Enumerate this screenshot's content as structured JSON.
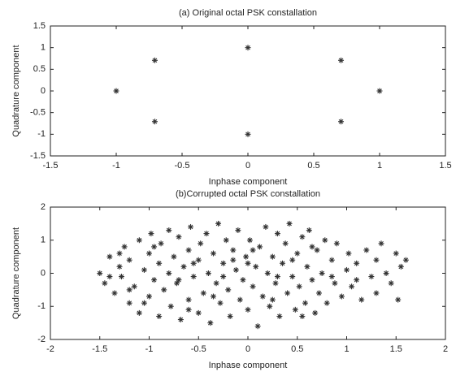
{
  "chart_data": [
    {
      "type": "scatter",
      "title": "(a) Original octal PSK constallation",
      "xlabel": "Inphase component",
      "ylabel": "Quadrature component",
      "x": [
        1,
        0.707,
        0,
        -0.707,
        -1,
        -0.707,
        0,
        0.707
      ],
      "y": [
        0,
        0.707,
        1,
        0.707,
        0,
        -0.707,
        -1,
        -0.707
      ],
      "xlim": [
        -1.5,
        1.5
      ],
      "ylim": [
        -1.5,
        1.5
      ],
      "xticks": [
        -1.5,
        -1,
        -0.5,
        0,
        0.5,
        1,
        1.5
      ],
      "yticks": [
        -1.5,
        -1,
        -0.5,
        0,
        0.5,
        1,
        1.5
      ],
      "color": "#333333"
    },
    {
      "type": "scatter",
      "title": "(b)Corrupted octal PSK constallation",
      "xlabel": "Inphase component",
      "ylabel": "Quadrature component",
      "x": [
        -1.5,
        -1.45,
        -1.4,
        -1.35,
        -1.3,
        -1.28,
        -1.25,
        -1.2,
        -1.2,
        -1.15,
        -1.1,
        -1.1,
        -1.05,
        -1.0,
        -1.0,
        -0.98,
        -0.95,
        -0.9,
        -0.9,
        -0.88,
        -0.85,
        -0.8,
        -0.8,
        -0.78,
        -0.75,
        -0.72,
        -0.7,
        -0.68,
        -0.65,
        -0.6,
        -0.6,
        -0.58,
        -0.55,
        -0.5,
        -0.5,
        -0.48,
        -0.45,
        -0.42,
        -0.4,
        -0.38,
        -0.35,
        -0.32,
        -0.3,
        -0.28,
        -0.25,
        -0.22,
        -0.2,
        -0.18,
        -0.15,
        -0.12,
        -0.1,
        -0.08,
        -0.05,
        -0.02,
        0,
        0.02,
        0.05,
        0.08,
        0.1,
        0.12,
        0.15,
        0.18,
        0.2,
        0.22,
        0.25,
        0.28,
        0.3,
        0.32,
        0.35,
        0.38,
        0.4,
        0.42,
        0.45,
        0.48,
        0.5,
        0.52,
        0.55,
        0.58,
        0.6,
        0.62,
        0.65,
        0.68,
        0.7,
        0.72,
        0.75,
        0.78,
        0.8,
        0.85,
        0.88,
        0.9,
        0.95,
        1.0,
        1.02,
        1.05,
        1.1,
        1.15,
        1.2,
        1.25,
        1.3,
        1.3,
        1.35,
        1.4,
        1.45,
        1.5,
        1.52,
        1.55,
        1.6,
        -1.4,
        -1.3,
        -1.2,
        -1.05,
        -0.95,
        -0.7,
        -0.55,
        -0.35,
        -0.15,
        0.05,
        0.25,
        0.45,
        0.65,
        0.85,
        1.1,
        -0.6,
        0,
        0.3,
        -0.25,
        0.55
      ],
      "y": [
        0,
        -0.3,
        0.5,
        -0.6,
        0.2,
        -0.1,
        0.8,
        -0.9,
        0.4,
        -0.4,
        1.0,
        -1.2,
        0.1,
        0.6,
        -0.7,
        1.2,
        -0.2,
        0.3,
        -1.3,
        0.9,
        -0.5,
        1.3,
        0,
        -1.0,
        0.5,
        -0.3,
        1.1,
        -1.4,
        0.2,
        0.7,
        -0.8,
        1.4,
        -0.1,
        0.4,
        -1.2,
        0.9,
        -0.6,
        1.2,
        0,
        -1.5,
        0.6,
        -0.3,
        1.5,
        -0.9,
        0.3,
        1.0,
        -0.5,
        -1.3,
        0.7,
        0.1,
        1.3,
        -0.8,
        -0.2,
        0.5,
        -1.1,
        1.0,
        -0.4,
        0.2,
        -1.6,
        0.8,
        -0.7,
        1.4,
        0,
        -1.0,
        0.5,
        -0.3,
        1.2,
        -1.3,
        0.3,
        0.9,
        -0.6,
        1.5,
        -0.1,
        -1.1,
        0.6,
        -0.4,
        1.1,
        -0.9,
        0.2,
        1.3,
        -0.2,
        -1.2,
        0.7,
        -0.6,
        0,
        1.0,
        -0.9,
        0.4,
        -0.3,
        0.9,
        -0.7,
        0.1,
        0.6,
        -0.4,
        0.3,
        -0.8,
        0.7,
        -0.1,
        0.4,
        -0.6,
        0.9,
        0,
        -0.3,
        0.6,
        -0.8,
        0.2,
        0.4,
        -0.1,
        0.6,
        -0.5,
        -0.9,
        0.8,
        -0.2,
        0.3,
        -0.7,
        0.4,
        0.7,
        -0.8,
        0.4,
        0.8,
        -0.1,
        -0.2,
        -1.1,
        0.3,
        -0.1,
        -0.1,
        -1.3
      ],
      "xlim": [
        -2,
        2
      ],
      "ylim": [
        -2,
        2
      ],
      "xticks": [
        -2,
        -1.5,
        -1,
        -0.5,
        0,
        0.5,
        1,
        1.5,
        2
      ],
      "yticks": [
        -2,
        -1,
        0,
        1,
        2
      ],
      "color": "#333333"
    }
  ]
}
